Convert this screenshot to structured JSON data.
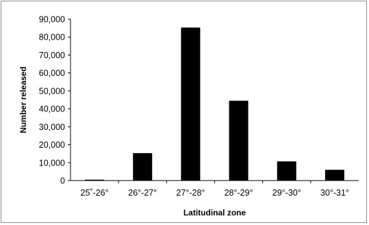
{
  "chart_data": {
    "type": "bar",
    "categories": [
      "25˚-26°",
      "26°-27°",
      "27°-28°",
      "28°-29°",
      "29°-30°",
      "30°-31°"
    ],
    "values": [
      500,
      15300,
      85300,
      44500,
      10700,
      6000
    ],
    "xlabel": "Latitudinal zone",
    "ylabel": "Number released",
    "ylim": [
      0,
      90000
    ],
    "yticks": [
      "0",
      "10,000",
      "20,000",
      "30,000",
      "40,000",
      "50,000",
      "60,000",
      "70,000",
      "80,000",
      "90,000"
    ],
    "grid": false,
    "legend": "none",
    "bar_color": "#000000"
  }
}
